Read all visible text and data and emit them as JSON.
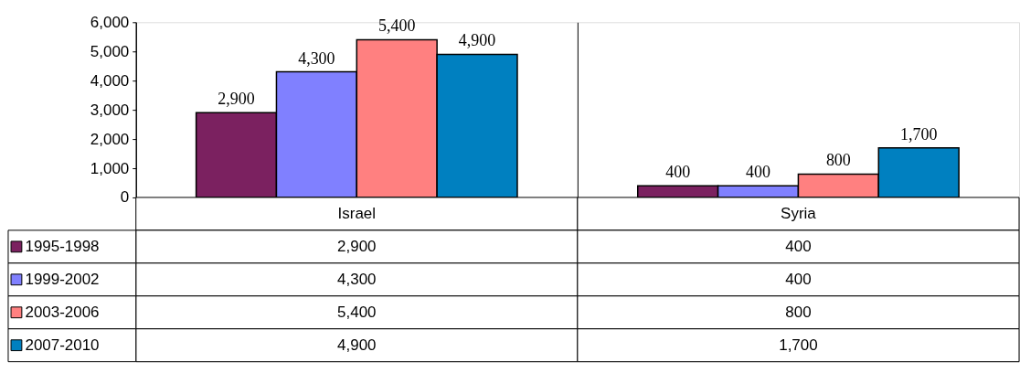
{
  "chart_data": {
    "type": "bar",
    "categories": [
      "Israel",
      "Syria"
    ],
    "series": [
      {
        "name": "1995-1998",
        "color": "#7b2160",
        "values": [
          2900,
          400
        ],
        "value_labels": [
          "2,900",
          "400"
        ]
      },
      {
        "name": "1999-2002",
        "color": "#8080ff",
        "values": [
          4300,
          400
        ],
        "value_labels": [
          "4,300",
          "400"
        ]
      },
      {
        "name": "2003-2006",
        "color": "#ff8080",
        "values": [
          5400,
          800
        ],
        "value_labels": [
          "5,400",
          "800"
        ]
      },
      {
        "name": "2007-2010",
        "color": "#0080c0",
        "values": [
          4900,
          1700
        ],
        "value_labels": [
          "4,900",
          "1,700"
        ]
      }
    ],
    "ylim": [
      0,
      6000
    ],
    "yticks": [
      {
        "value": 0,
        "label": "0"
      },
      {
        "value": 1000,
        "label": "1,000"
      },
      {
        "value": 2000,
        "label": "2,000"
      },
      {
        "value": 3000,
        "label": "3,000"
      },
      {
        "value": 4000,
        "label": "4,000"
      },
      {
        "value": 5000,
        "label": "5,000"
      },
      {
        "value": 6000,
        "label": "6,000"
      }
    ],
    "grid": "x",
    "legend": "left"
  }
}
